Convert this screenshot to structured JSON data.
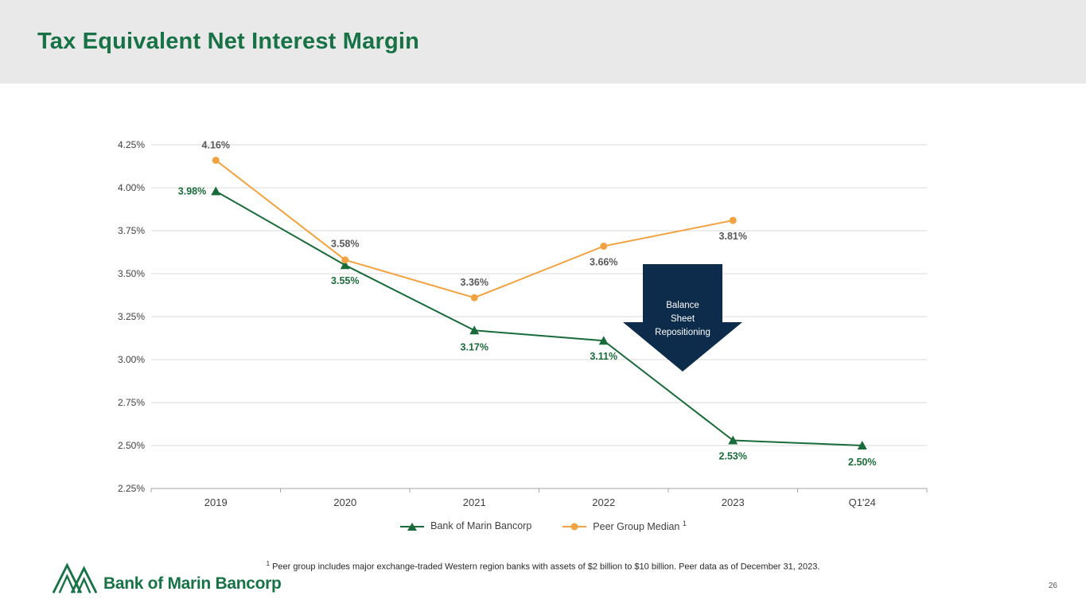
{
  "slide": {
    "title": "Tax Equivalent Net Interest Margin",
    "page_number": "26",
    "logo_text": "Bank of Marin Bancorp",
    "footnote_sup": "1",
    "footnote": "Peer group includes major exchange-traded Western region banks with assets of $2 billion to $10 billion. Peer data as of December 31, 2023."
  },
  "colors": {
    "title_green": "#177245",
    "series_green": "#1a6b3a",
    "series_orange": "#f2a341",
    "annotation_navy": "#0d2b4b",
    "label_gray": "#595959",
    "grid": "#d9d9d9",
    "axis": "#a6a6a6",
    "tick_text": "#404040"
  },
  "annotation": {
    "name": "balance-sheet-repositioning",
    "lines": [
      "Balance",
      "Sheet",
      "Repositioning"
    ]
  },
  "chart_data": {
    "type": "line",
    "title": "Tax Equivalent Net Interest Margin",
    "categories": [
      "2019",
      "2020",
      "2021",
      "2022",
      "2023",
      "Q1'24"
    ],
    "series": [
      {
        "name": "Bank of Marin Bancorp",
        "marker": "triangle",
        "color": "#1a6b3a",
        "values": [
          3.98,
          3.55,
          3.17,
          3.11,
          2.53,
          2.5
        ],
        "labels": [
          "3.98%",
          "3.55%",
          "3.17%",
          "3.11%",
          "2.53%",
          "2.50%"
        ]
      },
      {
        "name": "Peer Group Median",
        "legend_sup": "1",
        "marker": "circle",
        "color": "#f2a341",
        "values": [
          4.16,
          3.58,
          3.36,
          3.66,
          3.81,
          null
        ],
        "labels": [
          "4.16%",
          "3.58%",
          "3.36%",
          "3.66%",
          "3.81%",
          ""
        ]
      }
    ],
    "y_ticks": [
      "4.25%",
      "4.00%",
      "3.75%",
      "3.50%",
      "3.25%",
      "3.00%",
      "2.75%",
      "2.50%",
      "2.25%"
    ],
    "ylim": [
      2.25,
      4.25
    ],
    "xlabel": "",
    "ylabel": "",
    "grid": true,
    "legend_position": "bottom"
  }
}
